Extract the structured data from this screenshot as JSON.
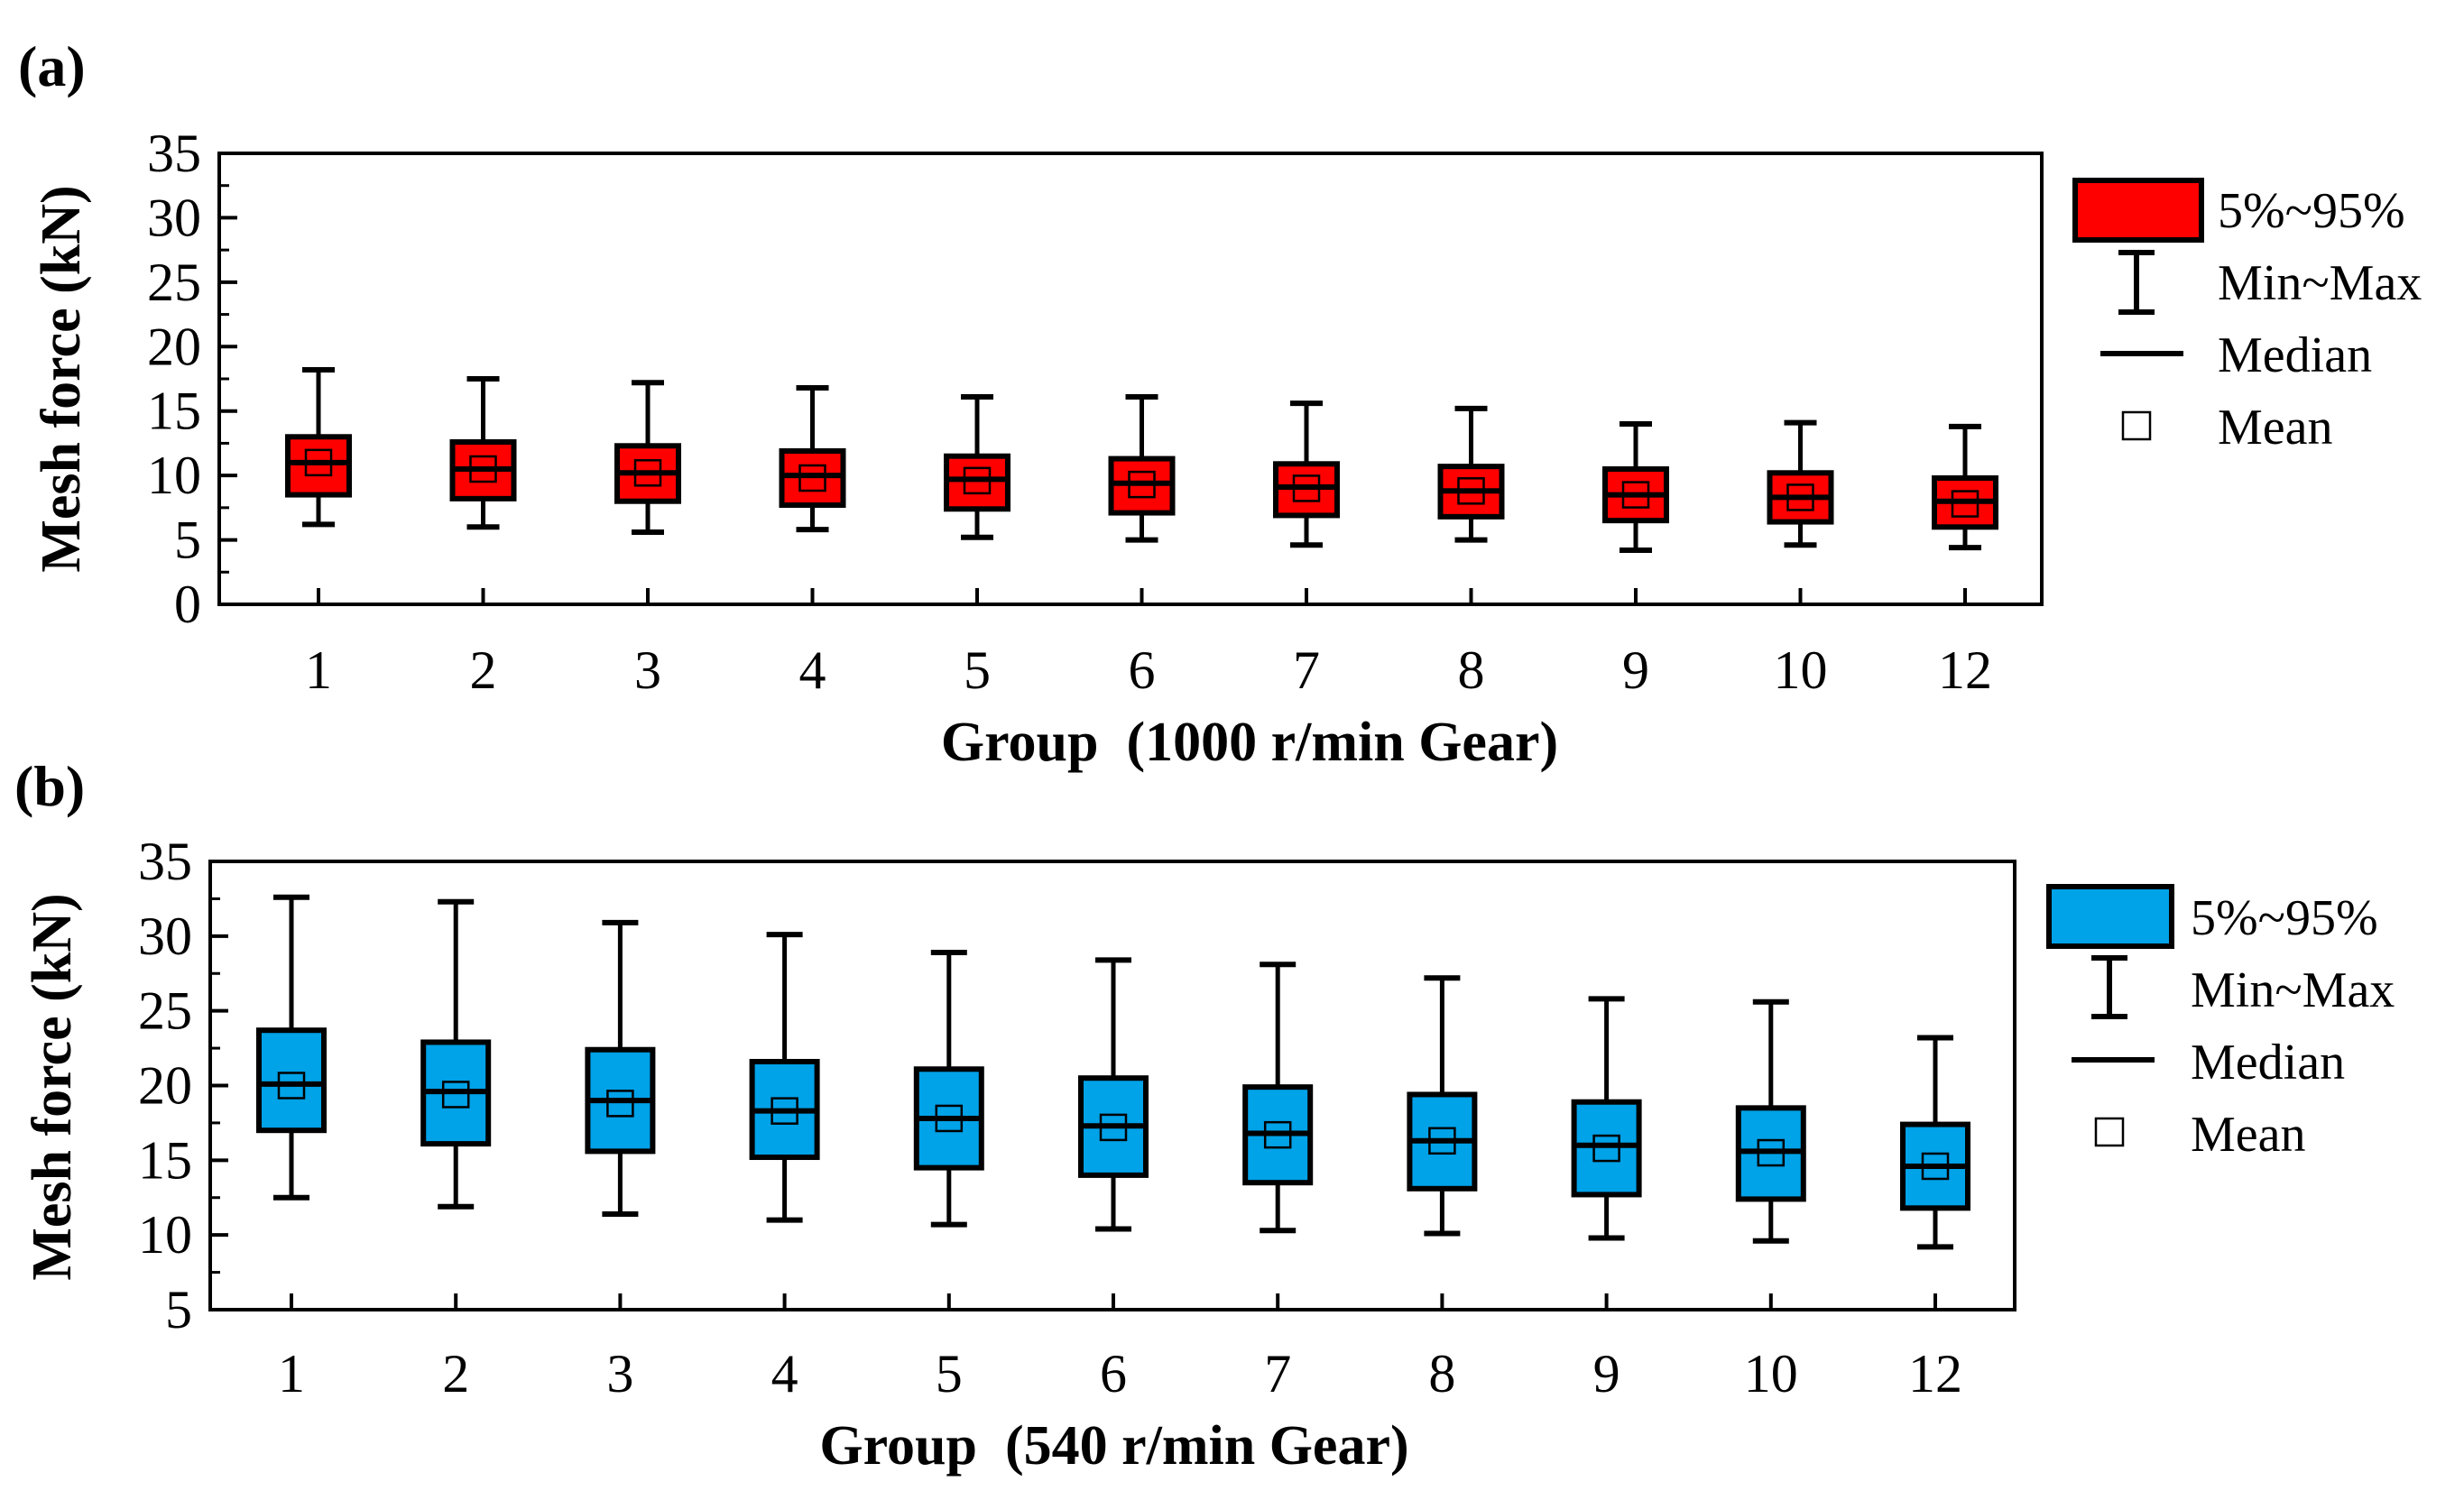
{
  "chart_data": [
    {
      "panel_label": "(a)",
      "type": "box",
      "xlabel": "Group  (1000 r/min Gear)",
      "ylabel": "Mesh force (kN)",
      "ylim": [
        0,
        35
      ],
      "yticks": [
        0,
        5,
        10,
        15,
        20,
        25,
        30,
        35
      ],
      "categories": [
        "1",
        "2",
        "3",
        "4",
        "5",
        "6",
        "7",
        "8",
        "9",
        "10",
        "12"
      ],
      "box_color": "#ff0000",
      "legend": {
        "position": "right",
        "box": "5%~95%",
        "whisker": "Min~Max",
        "median": "Median",
        "mean": "Mean"
      },
      "boxes": [
        {
          "min": 6.2,
          "p5": 8.5,
          "median": 11.0,
          "mean": 11.0,
          "p95": 13.0,
          "max": 18.2
        },
        {
          "min": 6.0,
          "p5": 8.2,
          "median": 10.5,
          "mean": 10.5,
          "p95": 12.6,
          "max": 17.5
        },
        {
          "min": 5.6,
          "p5": 8.0,
          "median": 10.2,
          "mean": 10.2,
          "p95": 12.3,
          "max": 17.2
        },
        {
          "min": 5.8,
          "p5": 7.7,
          "median": 10.0,
          "mean": 9.8,
          "p95": 11.9,
          "max": 16.8
        },
        {
          "min": 5.2,
          "p5": 7.4,
          "median": 9.7,
          "mean": 9.6,
          "p95": 11.5,
          "max": 16.1
        },
        {
          "min": 5.0,
          "p5": 7.1,
          "median": 9.4,
          "mean": 9.3,
          "p95": 11.3,
          "max": 16.1
        },
        {
          "min": 4.6,
          "p5": 6.9,
          "median": 9.1,
          "mean": 9.0,
          "p95": 10.9,
          "max": 15.6
        },
        {
          "min": 5.0,
          "p5": 6.8,
          "median": 8.8,
          "mean": 8.8,
          "p95": 10.7,
          "max": 15.2
        },
        {
          "min": 4.2,
          "p5": 6.5,
          "median": 8.5,
          "mean": 8.5,
          "p95": 10.5,
          "max": 14.0
        },
        {
          "min": 4.6,
          "p5": 6.4,
          "median": 8.3,
          "mean": 8.3,
          "p95": 10.2,
          "max": 14.1
        },
        {
          "min": 4.4,
          "p5": 6.0,
          "median": 8.0,
          "mean": 7.8,
          "p95": 9.8,
          "max": 13.8
        }
      ]
    },
    {
      "panel_label": "(b)",
      "type": "box",
      "xlabel": "Group  (540 r/min Gear)",
      "ylabel": "Mesh force (kN)",
      "ylim": [
        5,
        35
      ],
      "yticks": [
        5,
        10,
        15,
        20,
        25,
        30,
        35
      ],
      "categories": [
        "1",
        "2",
        "3",
        "4",
        "5",
        "6",
        "7",
        "8",
        "9",
        "10",
        "12"
      ],
      "box_color": "#00a2e8",
      "legend": {
        "position": "right",
        "box": "5%~95%",
        "whisker": "Min~Max",
        "median": "Median",
        "mean": "Mean"
      },
      "boxes": [
        {
          "min": 12.5,
          "p5": 17.0,
          "median": 20.1,
          "mean": 20.0,
          "p95": 23.7,
          "max": 32.6
        },
        {
          "min": 11.9,
          "p5": 16.1,
          "median": 19.6,
          "mean": 19.4,
          "p95": 22.9,
          "max": 32.3
        },
        {
          "min": 11.4,
          "p5": 15.6,
          "median": 19.0,
          "mean": 18.8,
          "p95": 22.4,
          "max": 30.9
        },
        {
          "min": 11.0,
          "p5": 15.2,
          "median": 18.3,
          "mean": 18.3,
          "p95": 21.6,
          "max": 30.1
        },
        {
          "min": 10.7,
          "p5": 14.5,
          "median": 17.8,
          "mean": 17.8,
          "p95": 21.1,
          "max": 28.9
        },
        {
          "min": 10.4,
          "p5": 14.0,
          "median": 17.3,
          "mean": 17.2,
          "p95": 20.5,
          "max": 28.4
        },
        {
          "min": 10.3,
          "p5": 13.5,
          "median": 16.8,
          "mean": 16.7,
          "p95": 19.9,
          "max": 28.1
        },
        {
          "min": 10.1,
          "p5": 13.1,
          "median": 16.3,
          "mean": 16.3,
          "p95": 19.4,
          "max": 27.2
        },
        {
          "min": 9.8,
          "p5": 12.7,
          "median": 16.0,
          "mean": 15.8,
          "p95": 18.9,
          "max": 25.8
        },
        {
          "min": 9.6,
          "p5": 12.4,
          "median": 15.6,
          "mean": 15.5,
          "p95": 18.5,
          "max": 25.6
        },
        {
          "min": 9.2,
          "p5": 11.8,
          "median": 14.6,
          "mean": 14.6,
          "p95": 17.4,
          "max": 23.2
        }
      ]
    }
  ]
}
